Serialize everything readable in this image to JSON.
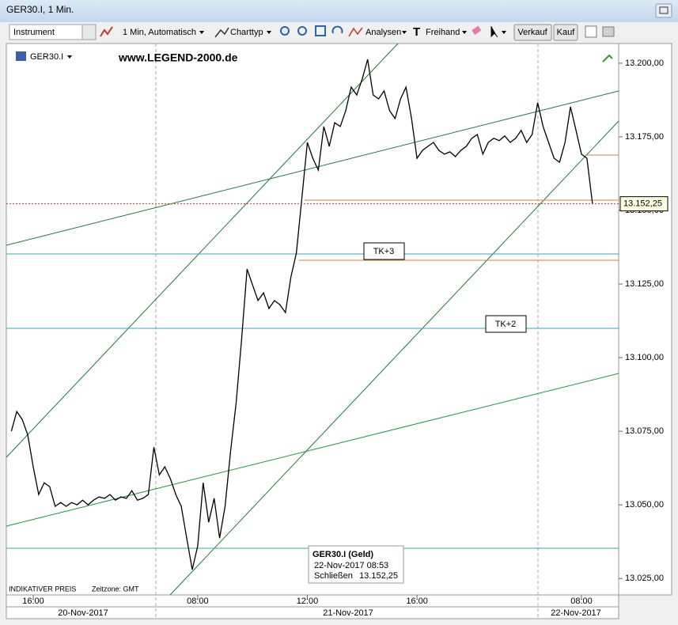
{
  "window": {
    "title": "GER30.I, 1 Min."
  },
  "toolbar": {
    "instrument": "Instrument",
    "interval": "1 Min, Automatisch",
    "chart_type": "Charttyp",
    "analyses": "Analysen",
    "freehand": "Freihand",
    "sell": "Verkauf",
    "buy": "Kauf"
  },
  "chart_data": {
    "type": "line",
    "symbol": "GER30.I",
    "watermark": "www.LEGEND-2000.de",
    "color": "#000000",
    "categories": [
      null,
      null,
      null,
      null,
      "16:00",
      null,
      null,
      null,
      null,
      null,
      null,
      null,
      null,
      null,
      null,
      null,
      null,
      null,
      null,
      null,
      null,
      null,
      null,
      null,
      null,
      null,
      null,
      null,
      null,
      null,
      null,
      null,
      null,
      null,
      "08:00",
      null,
      null,
      null,
      null,
      null,
      null,
      null,
      null,
      null,
      null,
      null,
      null,
      null,
      null,
      null,
      null,
      null,
      null,
      null,
      "12:00",
      null,
      null,
      null,
      null,
      null,
      null,
      null,
      null,
      null,
      null,
      null,
      null,
      null,
      null,
      null,
      null,
      null,
      null,
      null,
      "16:00",
      null,
      null,
      null,
      null,
      null,
      null,
      null,
      null,
      null,
      null,
      null,
      null,
      null,
      null,
      null,
      null,
      null,
      null,
      null,
      null,
      null,
      null,
      null,
      null,
      null,
      null,
      null,
      null,
      null,
      "08:00",
      null,
      null
    ],
    "values": [
      13075,
      13081.7,
      13079,
      13073.7,
      13062.9,
      13053.5,
      13057.5,
      13056.2,
      13049.5,
      13050.8,
      13049.5,
      13050.8,
      13050,
      13051.6,
      13050,
      13051.6,
      13052.7,
      13052.2,
      13053.5,
      13051.6,
      13052.7,
      13052.2,
      13054.8,
      13051.6,
      13052.2,
      13053.5,
      13069.6,
      13060.2,
      13062.9,
      13058.9,
      13053.5,
      13049.5,
      13038.7,
      13028,
      13036,
      13057.5,
      13044.1,
      13052.2,
      13038.7,
      13049.5,
      13068.3,
      13084.4,
      13105.9,
      13130.1,
      13124.7,
      13119.4,
      13122,
      13116.7,
      13119.4,
      13118,
      13115.3,
      13127.4,
      13135.5,
      13154.3,
      13173.1,
      13167.7,
      13163.7,
      13178.5,
      13171.8,
      13179.8,
      13178.5,
      13183.9,
      13191.9,
      13189.2,
      13194.6,
      13201.3,
      13189.2,
      13187.9,
      13190.6,
      13183.9,
      13181.2,
      13187.9,
      13191.9,
      13181.2,
      13167.7,
      13170.4,
      13171.8,
      13173.1,
      13170.4,
      13169.1,
      13169.9,
      13168.3,
      13170.4,
      13171.8,
      13174.5,
      13175.8,
      13169.1,
      13173.1,
      13174.5,
      13173.7,
      13175.3,
      13173.1,
      13174.5,
      13177.2,
      13173.1,
      13175.8,
      13186.6,
      13178.5,
      13173.1,
      13167.7,
      13166.4,
      13173.1,
      13185.2,
      13177.2,
      13169.1,
      13167.7,
      13152.25
    ],
    "last_price_label": "13.152,25",
    "ylim": [
      13019.4,
      13206.7
    ],
    "yticks": [
      {
        "value": 13200,
        "label": "13.200,00"
      },
      {
        "value": 13175,
        "label": "13.175,00"
      },
      {
        "value": 13150,
        "label": "13.150,00"
      },
      {
        "value": 13125,
        "label": "13.125,00"
      },
      {
        "value": 13100,
        "label": "13.100,00"
      },
      {
        "value": 13075,
        "label": "13.075,00"
      },
      {
        "value": 13050,
        "label": "13.050,00"
      },
      {
        "value": 13025,
        "label": "13.025,00"
      }
    ],
    "grid": false,
    "dates": [
      "20-Nov-2017",
      "21-Nov-2017",
      "22-Nov-2017"
    ],
    "annotations": [
      "TK+3",
      "TK+2"
    ],
    "price_type": "INDIKATIVER PREIS",
    "timezone": "Zeitzone: GMT",
    "tooltip": {
      "title": "GER30.I (Geld)",
      "time": "22-Nov-2017 08:53",
      "field": "Schließen",
      "value": "13.152,25"
    }
  }
}
